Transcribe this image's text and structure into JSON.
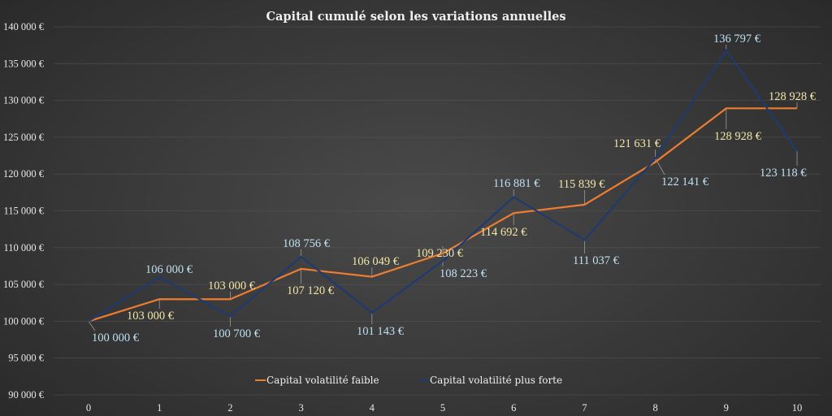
{
  "chart_data": {
    "type": "line",
    "title": "Capital cumulé selon les variations annuelles",
    "xlabel": "",
    "ylabel": "",
    "x": [
      0,
      1,
      2,
      3,
      4,
      5,
      6,
      7,
      8,
      9,
      10
    ],
    "ylim": [
      90000,
      140000
    ],
    "y_ticks": [
      "90 000 €",
      "95 000 €",
      "100 000 €",
      "105 000 €",
      "110 000 €",
      "115 000 €",
      "120 000 €",
      "125 000 €",
      "130 000 €",
      "135 000 €",
      "140 000 €"
    ],
    "grid": true,
    "legend_position": "bottom",
    "series": [
      {
        "name": "Capital volatilité faible",
        "color": "#ED7D31",
        "label_color": "#F3E6A6",
        "values": [
          100000,
          103000,
          103000,
          107120,
          106049,
          109230,
          114692,
          115839,
          121631,
          128928,
          128928
        ],
        "labels": [
          "",
          "103 000 €",
          "103 000 €",
          "107 120 €",
          "106 049 €",
          "109 230 €",
          "114 692 €",
          "115 839 €",
          "121 631 €",
          "128 928 €",
          "128 928 €"
        ]
      },
      {
        "name": "Capital volatilité plus forte",
        "color": "#1F3A6E",
        "label_color": "#BFE0F2",
        "values": [
          100000,
          106000,
          100700,
          108756,
          101143,
          108223,
          116881,
          111037,
          122141,
          136797,
          123118
        ],
        "labels": [
          "100 000 €",
          "106 000 €",
          "100 700 €",
          "108 756 €",
          "101 143 €",
          "108 223 €",
          "116 881 €",
          "111 037 €",
          "122 141 €",
          "136 797 €",
          "123 118 €"
        ]
      }
    ]
  },
  "legend": {
    "items": [
      {
        "label": "Capital volatilité faible",
        "color": "#ED7D31"
      },
      {
        "label": "Capital volatilité plus forte",
        "color": "#1F3A6E"
      }
    ]
  }
}
